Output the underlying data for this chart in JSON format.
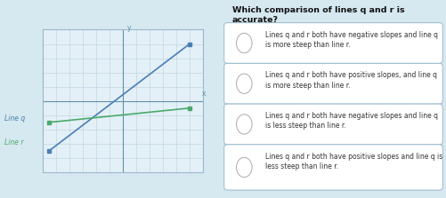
{
  "bg_color": "#d6e8f0",
  "graph_bg": "#e4f0f7",
  "graph_border_color": "#9ab8cc",
  "grid_color": "#b8d0de",
  "line_q_color": "#4a7eb5",
  "line_r_color": "#4aaa6a",
  "axis_color": "#6090aa",
  "label_q": "Line q",
  "label_r": "Line r",
  "label_q_color": "#4a7eb5",
  "label_r_color": "#4aaa6a",
  "question_title": "Which comparison of lines q and r is\naccurate?",
  "options": [
    "Lines q and r both have negative slopes and line q\nis more steep than line r.",
    "Lines q and r both have positive slopes, and line q\nis more steep than line r.",
    "Lines q and r both have negative slopes and line q\nis less steep than line r.",
    "Lines q and r both have positive slopes and line q is\nless steep than line r."
  ],
  "option_border_color": "#9ab8cc",
  "option_bg_color": "#ffffff",
  "option_text_color": "#333333",
  "radio_color": "#aaaaaa",
  "title_color": "#111111"
}
